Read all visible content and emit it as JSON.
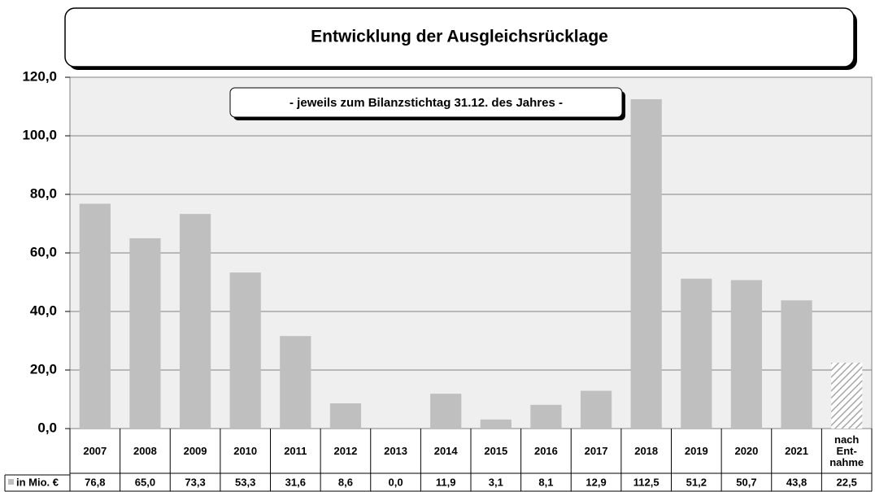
{
  "chart_data": {
    "type": "bar",
    "title": "Entwicklung der Ausgleichsrücklage",
    "subtitle": "- jeweils zum Bilanzstichtag 31.12. des Jahres -",
    "categories": [
      "2007",
      "2008",
      "2009",
      "2010",
      "2011",
      "2012",
      "2013",
      "2014",
      "2015",
      "2016",
      "2017",
      "2018",
      "2019",
      "2020",
      "2021",
      "nach Ent-nahme"
    ],
    "series": [
      {
        "name": "in Mio. €",
        "color": "#bfbfbf",
        "values": [
          76.8,
          65.0,
          73.3,
          53.3,
          31.6,
          8.6,
          0.0,
          11.9,
          3.1,
          8.1,
          12.9,
          112.5,
          51.2,
          50.7,
          43.8,
          22.5
        ],
        "value_labels": [
          "76,8",
          "65,0",
          "73,3",
          "53,3",
          "31,6",
          "8,6",
          "0,0",
          "11,9",
          "3,1",
          "8,1",
          "12,9",
          "112,5",
          "51,2",
          "50,7",
          "43,8",
          "22,5"
        ]
      }
    ],
    "hatched_index": 15,
    "ylim": [
      0,
      120
    ],
    "yticks": [
      {
        "value": 0,
        "label": "0,0"
      },
      {
        "value": 20,
        "label": "20,0"
      },
      {
        "value": 40,
        "label": "40,0"
      },
      {
        "value": 60,
        "label": "60,0"
      },
      {
        "value": 80,
        "label": "80,0"
      },
      {
        "value": 100,
        "label": "100,0"
      },
      {
        "value": 120,
        "label": "120,0"
      }
    ],
    "grid": true
  }
}
